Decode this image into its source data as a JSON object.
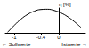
{
  "chart_data": {
    "type": "line",
    "y_label": "η [%]",
    "annotations": [
      "← Sollwerte",
      "Istwerte →"
    ],
    "x": [
      -1.15,
      -1.0,
      -0.85,
      -0.7,
      -0.55,
      -0.4,
      -0.25,
      -0.1,
      0.05,
      0.2,
      0.35,
      0.5
    ],
    "values": [
      2,
      30,
      55,
      74,
      87,
      94,
      95,
      90,
      80,
      65,
      45,
      22
    ],
    "color": "#000000",
    "xlim": [
      -1.2,
      0.6
    ],
    "xticks": [
      -1,
      -0.4,
      0
    ],
    "ylim": [
      0,
      100
    ],
    "tick_labels": "x",
    "grid": false
  }
}
